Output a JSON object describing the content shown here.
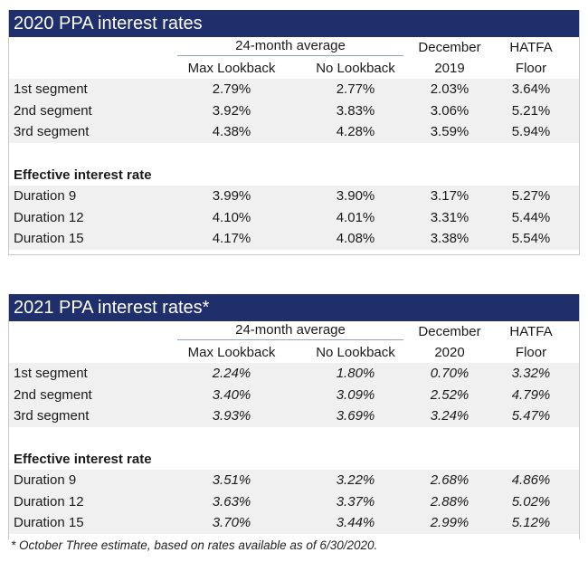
{
  "tables": [
    {
      "title": "2020 PPA interest rates",
      "header": {
        "group": "24-month average",
        "col1": "Max Lookback",
        "col2": "No Lookback",
        "col3_top": "December",
        "col3_bottom": "2019",
        "col4_top": "HATFA",
        "col4_bottom": "Floor"
      },
      "segments": [
        {
          "label": "1st segment",
          "values": [
            "2.79%",
            "2.77%",
            "2.03%",
            "3.64%"
          ]
        },
        {
          "label": "2nd segment",
          "values": [
            "3.92%",
            "3.83%",
            "3.06%",
            "5.21%"
          ]
        },
        {
          "label": "3rd segment",
          "values": [
            "4.38%",
            "4.28%",
            "3.59%",
            "5.94%"
          ]
        }
      ],
      "effective_heading": "Effective interest rate",
      "durations": [
        {
          "label": "Duration 9",
          "values": [
            "3.99%",
            "3.90%",
            "3.17%",
            "5.27%"
          ]
        },
        {
          "label": "Duration 12",
          "values": [
            "4.10%",
            "4.01%",
            "3.31%",
            "5.44%"
          ]
        },
        {
          "label": "Duration 15",
          "values": [
            "4.17%",
            "4.08%",
            "3.38%",
            "5.54%"
          ]
        }
      ]
    },
    {
      "title": "2021 PPA interest rates*",
      "header": {
        "group": "24-month average",
        "col1": "Max Lookback",
        "col2": "No Lookback",
        "col3_top": "December",
        "col3_bottom": "2020",
        "col4_top": "HATFA",
        "col4_bottom": "Floor"
      },
      "segments": [
        {
          "label": "1st segment",
          "values": [
            "2.24%",
            "1.80%",
            "0.70%",
            "3.32%"
          ]
        },
        {
          "label": "2nd segment",
          "values": [
            "3.40%",
            "3.09%",
            "2.52%",
            "4.79%"
          ]
        },
        {
          "label": "3rd segment",
          "values": [
            "3.93%",
            "3.69%",
            "3.24%",
            "5.47%"
          ]
        }
      ],
      "effective_heading": "Effective interest rate",
      "durations": [
        {
          "label": "Duration 9",
          "values": [
            "3.51%",
            "3.22%",
            "2.68%",
            "4.86%"
          ]
        },
        {
          "label": "Duration 12",
          "values": [
            "3.63%",
            "3.37%",
            "2.88%",
            "5.02%"
          ]
        },
        {
          "label": "Duration 15",
          "values": [
            "3.70%",
            "3.44%",
            "2.99%",
            "5.12%"
          ]
        }
      ]
    }
  ],
  "footnote": "* October Three estimate, based on rates available as of 6/30/2020.",
  "colors": {
    "title_bar": "#1f2f6b",
    "row_shade": "#f0f0f0",
    "group_rule": "#8aa6c8"
  }
}
